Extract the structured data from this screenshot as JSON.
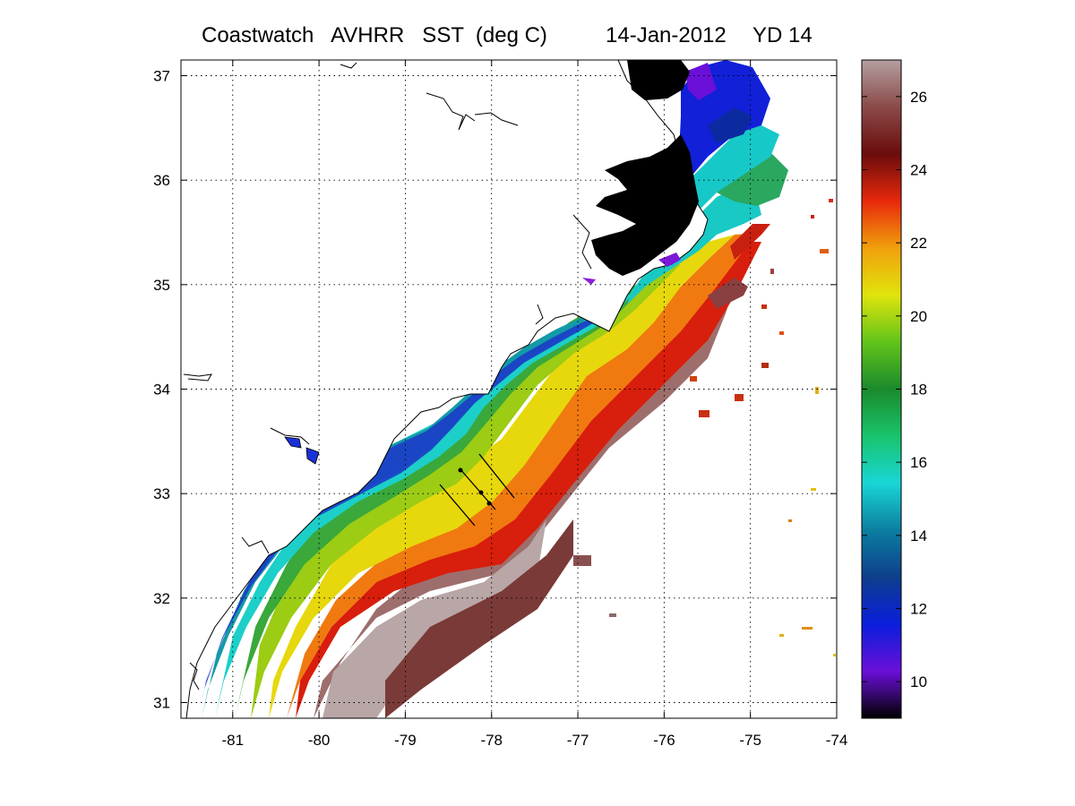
{
  "title": {
    "left": "Coastwatch   AVHRR   SST  (deg C)",
    "date": "14-Jan-2012",
    "yearday": "YD 14"
  },
  "map": {
    "lon_range": [
      -81.6,
      -74.0
    ],
    "lat_range": [
      30.85,
      37.15
    ],
    "lon_ticks": [
      "-81",
      "-80",
      "-79",
      "-78",
      "-77",
      "-76",
      "-75",
      "-74"
    ],
    "lat_ticks": [
      "37",
      "36",
      "35",
      "34",
      "33",
      "32",
      "31"
    ],
    "grid": "dotted"
  },
  "colorbar": {
    "range": [
      9,
      27
    ],
    "ticks": [
      "26",
      "24",
      "22",
      "20",
      "18",
      "16",
      "14",
      "12",
      "10"
    ],
    "colors": [
      "#000000",
      "#6a0fd8",
      "#0a1edc",
      "#0d3f8c",
      "#0c7ea0",
      "#18d6d6",
      "#19c46c",
      "#1a8a2c",
      "#62c41a",
      "#e0e40c",
      "#f0a00c",
      "#e8280c",
      "#6a0c0c",
      "#8a4a48",
      "#b4a0a0"
    ]
  },
  "legend_colors": {
    "land": "#ffffff",
    "sounds": "#000000",
    "coastline": "#000000"
  }
}
